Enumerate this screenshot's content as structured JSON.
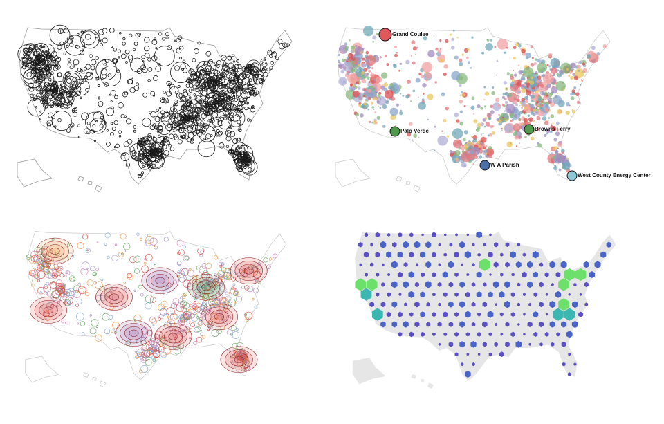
{
  "annotations": [
    {
      "label": "Grand Coulee",
      "color": "#e0585c"
    },
    {
      "label": "Palo Verde",
      "color": "#4f9a4c"
    },
    {
      "label": "Browns Ferry",
      "color": "#4f9a4c"
    },
    {
      "label": "W A Parish",
      "color": "#4d6fa8"
    },
    {
      "label": "West County Energy Center",
      "color": "#8fc9d6"
    }
  ]
}
